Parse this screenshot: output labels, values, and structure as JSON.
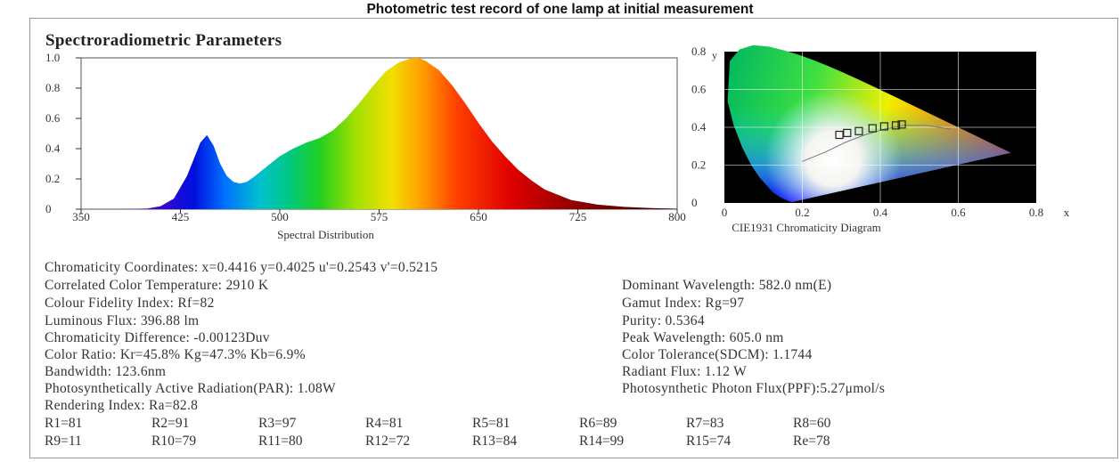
{
  "title": "Photometric test record of one lamp at initial measurement",
  "section_title": "Spectroradiometric Parameters",
  "chart_data": [
    {
      "type": "area",
      "xlabel": "Spectral Distribution",
      "ylabel": "",
      "xlim": [
        350,
        800
      ],
      "ylim": [
        0,
        1.0
      ],
      "x_ticks": [
        "350",
        "425",
        "500",
        "575",
        "650",
        "725",
        "800"
      ],
      "y_ticks": [
        "0",
        "0.2",
        "0.4",
        "0.6",
        "0.8",
        "1.0"
      ],
      "fill": "visible-spectrum gradient by wavelength",
      "x": [
        380,
        400,
        410,
        420,
        430,
        435,
        440,
        445,
        450,
        455,
        460,
        465,
        470,
        475,
        480,
        490,
        500,
        510,
        520,
        530,
        540,
        550,
        560,
        570,
        580,
        590,
        600,
        605,
        610,
        620,
        630,
        640,
        650,
        660,
        670,
        680,
        690,
        700,
        720,
        740,
        760,
        780,
        800
      ],
      "y": [
        0.0,
        0.005,
        0.02,
        0.07,
        0.22,
        0.33,
        0.44,
        0.49,
        0.42,
        0.3,
        0.22,
        0.18,
        0.17,
        0.18,
        0.21,
        0.28,
        0.35,
        0.4,
        0.44,
        0.47,
        0.52,
        0.6,
        0.7,
        0.81,
        0.91,
        0.97,
        1.0,
        1.0,
        0.98,
        0.92,
        0.82,
        0.7,
        0.57,
        0.45,
        0.35,
        0.26,
        0.19,
        0.13,
        0.06,
        0.03,
        0.015,
        0.007,
        0.003
      ]
    },
    {
      "type": "scatter",
      "xlabel": "CIE1931 Chromaticity Diagram",
      "ylabel": "y",
      "xlim": [
        0,
        0.8
      ],
      "ylim": [
        0,
        0.8
      ],
      "x_ticks": [
        "0",
        "0.2",
        "0.4",
        "0.6",
        "0.8",
        "x"
      ],
      "y_ticks": [
        "0",
        "0.2",
        "0.4",
        "0.6",
        "0.8"
      ],
      "grid": true,
      "points": [
        {
          "x": 0.295,
          "y": 0.36
        },
        {
          "x": 0.315,
          "y": 0.37
        },
        {
          "x": 0.345,
          "y": 0.38
        },
        {
          "x": 0.38,
          "y": 0.395
        },
        {
          "x": 0.41,
          "y": 0.405
        },
        {
          "x": 0.44,
          "y": 0.41
        },
        {
          "x": 0.455,
          "y": 0.415
        }
      ]
    }
  ],
  "params": {
    "chromaticity_coordinates": "Chromaticity Coordinates: x=0.4416 y=0.4025 u'=0.2543 v'=0.5215",
    "cct": "Correlated Color Temperature: 2910 K",
    "dominant_wavelength": "Dominant Wavelength: 582.0 nm(E)",
    "fidelity": "Colour Fidelity Index: Rf=82",
    "gamut": "Gamut Index: Rg=97",
    "flux": "Luminous Flux: 396.88 lm",
    "purity": "Purity: 0.5364",
    "chroma_diff": "Chromaticity Difference: -0.00123Duv",
    "peak": "Peak Wavelength: 605.0 nm",
    "ratio": "Color Ratio:  Kr=45.8%  Kg=47.3%  Kb=6.9%",
    "tolerance": "Color Tolerance(SDCM): 1.1744",
    "bandwidth": "Bandwidth: 123.6nm",
    "radiant": "Radiant Flux: 1.12 W",
    "par": "Photosynthetically Active Radiation(PAR): 1.08W",
    "ppf": "Photosynthetic  Photon Flux(PPF):5.27μmol/s",
    "ra": "Rendering Index: Ra=82.8"
  },
  "rendering_values": [
    [
      "R1=81",
      "R2=91",
      "R3=97",
      "R4=81",
      "R5=81",
      "R6=89",
      "R7=83",
      "R8=60"
    ],
    [
      "R9=11",
      "R10=79",
      "R11=80",
      "R12=72",
      "R13=84",
      "R14=99",
      "R15=74",
      "Re=78"
    ]
  ]
}
